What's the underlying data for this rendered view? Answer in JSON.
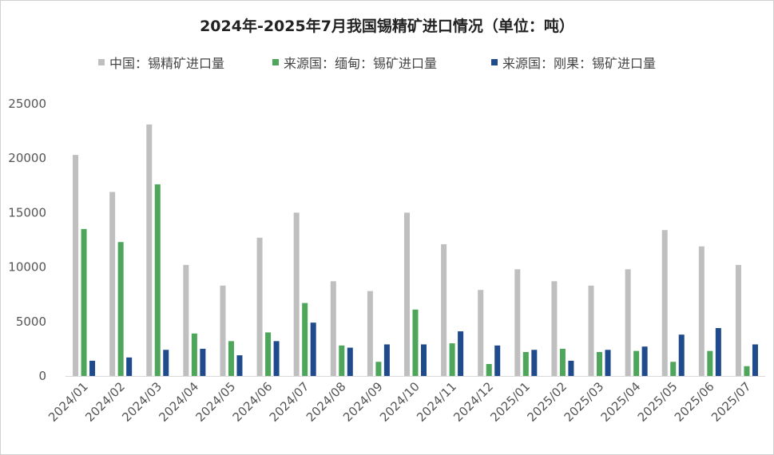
{
  "chart_data": {
    "type": "bar",
    "title": "2024年-2025年7月我国锡精矿进口情况（单位：吨）",
    "categories": [
      "2024/01",
      "2024/02",
      "2024/03",
      "2024/04",
      "2024/05",
      "2024/06",
      "2024/07",
      "2024/08",
      "2024/09",
      "2024/10",
      "2024/11",
      "2024/12",
      "2025/01",
      "2025/02",
      "2025/03",
      "2025/04",
      "2025/05",
      "2025/06",
      "2025/07"
    ],
    "series": [
      {
        "name": "中国：锡精矿进口量",
        "color": "#bfbfbf",
        "values": [
          20300,
          16900,
          23100,
          10200,
          8300,
          12700,
          15000,
          8700,
          7800,
          15000,
          12100,
          7900,
          9800,
          8700,
          8300,
          9800,
          13400,
          11900,
          10200
        ]
      },
      {
        "name": "来源国：缅甸：锡矿进口量",
        "color": "#4ea65a",
        "values": [
          13500,
          12300,
          17600,
          3900,
          3200,
          4000,
          6700,
          2800,
          1300,
          6100,
          3000,
          1100,
          2200,
          2500,
          2200,
          2300,
          1300,
          2300,
          900
        ]
      },
      {
        "name": "来源国：刚果：锡矿进口量",
        "color": "#1f4a8c",
        "values": [
          1400,
          1700,
          2400,
          2500,
          1900,
          3200,
          4900,
          2600,
          2900,
          2900,
          4100,
          2800,
          2400,
          1400,
          2400,
          2700,
          3800,
          4400,
          2900
        ]
      }
    ],
    "ylim": [
      0,
      25000
    ],
    "yticks": [
      "0",
      "5000",
      "10000",
      "15000",
      "20000",
      "25000"
    ],
    "grid": false,
    "legend_position": "top"
  }
}
